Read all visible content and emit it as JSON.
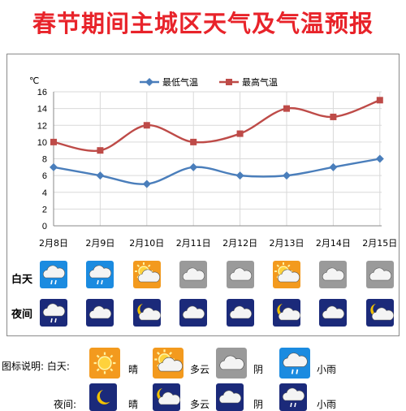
{
  "title": "春节期间主城区天气及气温预报",
  "chart_data": {
    "type": "line",
    "ylabel": "℃",
    "ylim": [
      0,
      16
    ],
    "yticks": [
      0,
      2,
      4,
      6,
      8,
      10,
      12,
      14,
      16
    ],
    "categories": [
      "2月8日",
      "2月9日",
      "2月10日",
      "2月11日",
      "2月12日",
      "2月13日",
      "2月14日",
      "2月15日"
    ],
    "series": [
      {
        "name": "最低气温",
        "values": [
          7,
          6,
          5,
          7,
          6,
          6,
          7,
          8
        ],
        "color": "#4a7ebb",
        "marker": "diamond"
      },
      {
        "name": "最高气温",
        "values": [
          10,
          9,
          12,
          10,
          11,
          14,
          13,
          15
        ],
        "color": "#be4b48",
        "marker": "square"
      }
    ],
    "grid": true,
    "legend": "top"
  },
  "weather": {
    "day_label": "白天",
    "night_label": "夜间",
    "day": [
      "rain-icon",
      "rain-icon",
      "partly-cloudy-icon",
      "cloudy-icon",
      "cloudy-icon",
      "partly-cloudy-icon",
      "cloudy-icon",
      "cloudy-icon"
    ],
    "night": [
      "night-rain-icon",
      "night-cloudy-icon",
      "night-partly-cloudy-icon",
      "night-cloudy-icon",
      "night-cloudy-icon",
      "night-partly-cloudy-icon",
      "night-cloudy-icon",
      "night-partly-cloudy-icon"
    ]
  },
  "legend_key": {
    "title": "图标说明: 白天:",
    "night_label": "夜间:",
    "day": [
      {
        "icon": "sunny-icon",
        "label": "晴"
      },
      {
        "icon": "partly-cloudy-icon",
        "label": "多云"
      },
      {
        "icon": "cloudy-icon",
        "label": "阴"
      },
      {
        "icon": "rain-icon",
        "label": "小雨"
      }
    ],
    "night": [
      {
        "icon": "night-clear-icon",
        "label": "晴"
      },
      {
        "icon": "night-partly-cloudy-icon",
        "label": "多云"
      },
      {
        "icon": "night-cloudy-icon",
        "label": "阴"
      },
      {
        "icon": "night-rain-icon",
        "label": "小雨"
      }
    ]
  },
  "colors": {
    "day_bg": "#1b8be0",
    "day_sun_bg": "#f39a1e",
    "day_cloudy_bg": "#9a9a9a",
    "night_bg": "#1b2a7a"
  }
}
